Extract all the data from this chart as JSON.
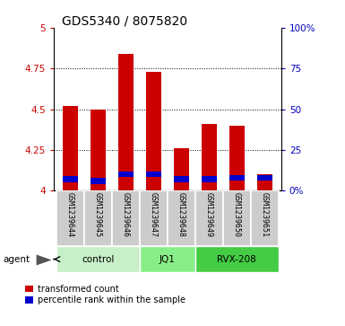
{
  "title": "GDS5340 / 8075820",
  "samples": [
    "GSM1239644",
    "GSM1239645",
    "GSM1239646",
    "GSM1239647",
    "GSM1239648",
    "GSM1239649",
    "GSM1239650",
    "GSM1239651"
  ],
  "red_values": [
    4.52,
    4.5,
    4.84,
    4.73,
    4.26,
    4.41,
    4.4,
    4.1
  ],
  "blue_values": [
    4.07,
    4.06,
    4.1,
    4.1,
    4.07,
    4.07,
    4.08,
    4.08
  ],
  "groups": [
    {
      "label": "control",
      "start": 0,
      "end": 3,
      "color": "#c8f0c8"
    },
    {
      "label": "JQ1",
      "start": 3,
      "end": 5,
      "color": "#88ee88"
    },
    {
      "label": "RVX-208",
      "start": 5,
      "end": 8,
      "color": "#44cc44"
    }
  ],
  "ylim": [
    4.0,
    5.0
  ],
  "y_ticks": [
    4.0,
    4.25,
    4.5,
    4.75,
    5.0
  ],
  "y_tick_labels": [
    "4",
    "4.25",
    "4.5",
    "4.75",
    "5"
  ],
  "right_ylim": [
    0,
    100
  ],
  "right_ticks": [
    0,
    25,
    50,
    75,
    100
  ],
  "right_tick_labels": [
    "0%",
    "25",
    "50",
    "75",
    "100%"
  ],
  "bar_width": 0.55,
  "bar_color_red": "#cc0000",
  "bar_color_blue": "#0000cc",
  "legend_red": "transformed count",
  "legend_blue": "percentile rank within the sample",
  "left_label_color": "#cc0000",
  "right_label_color": "#0000bb"
}
